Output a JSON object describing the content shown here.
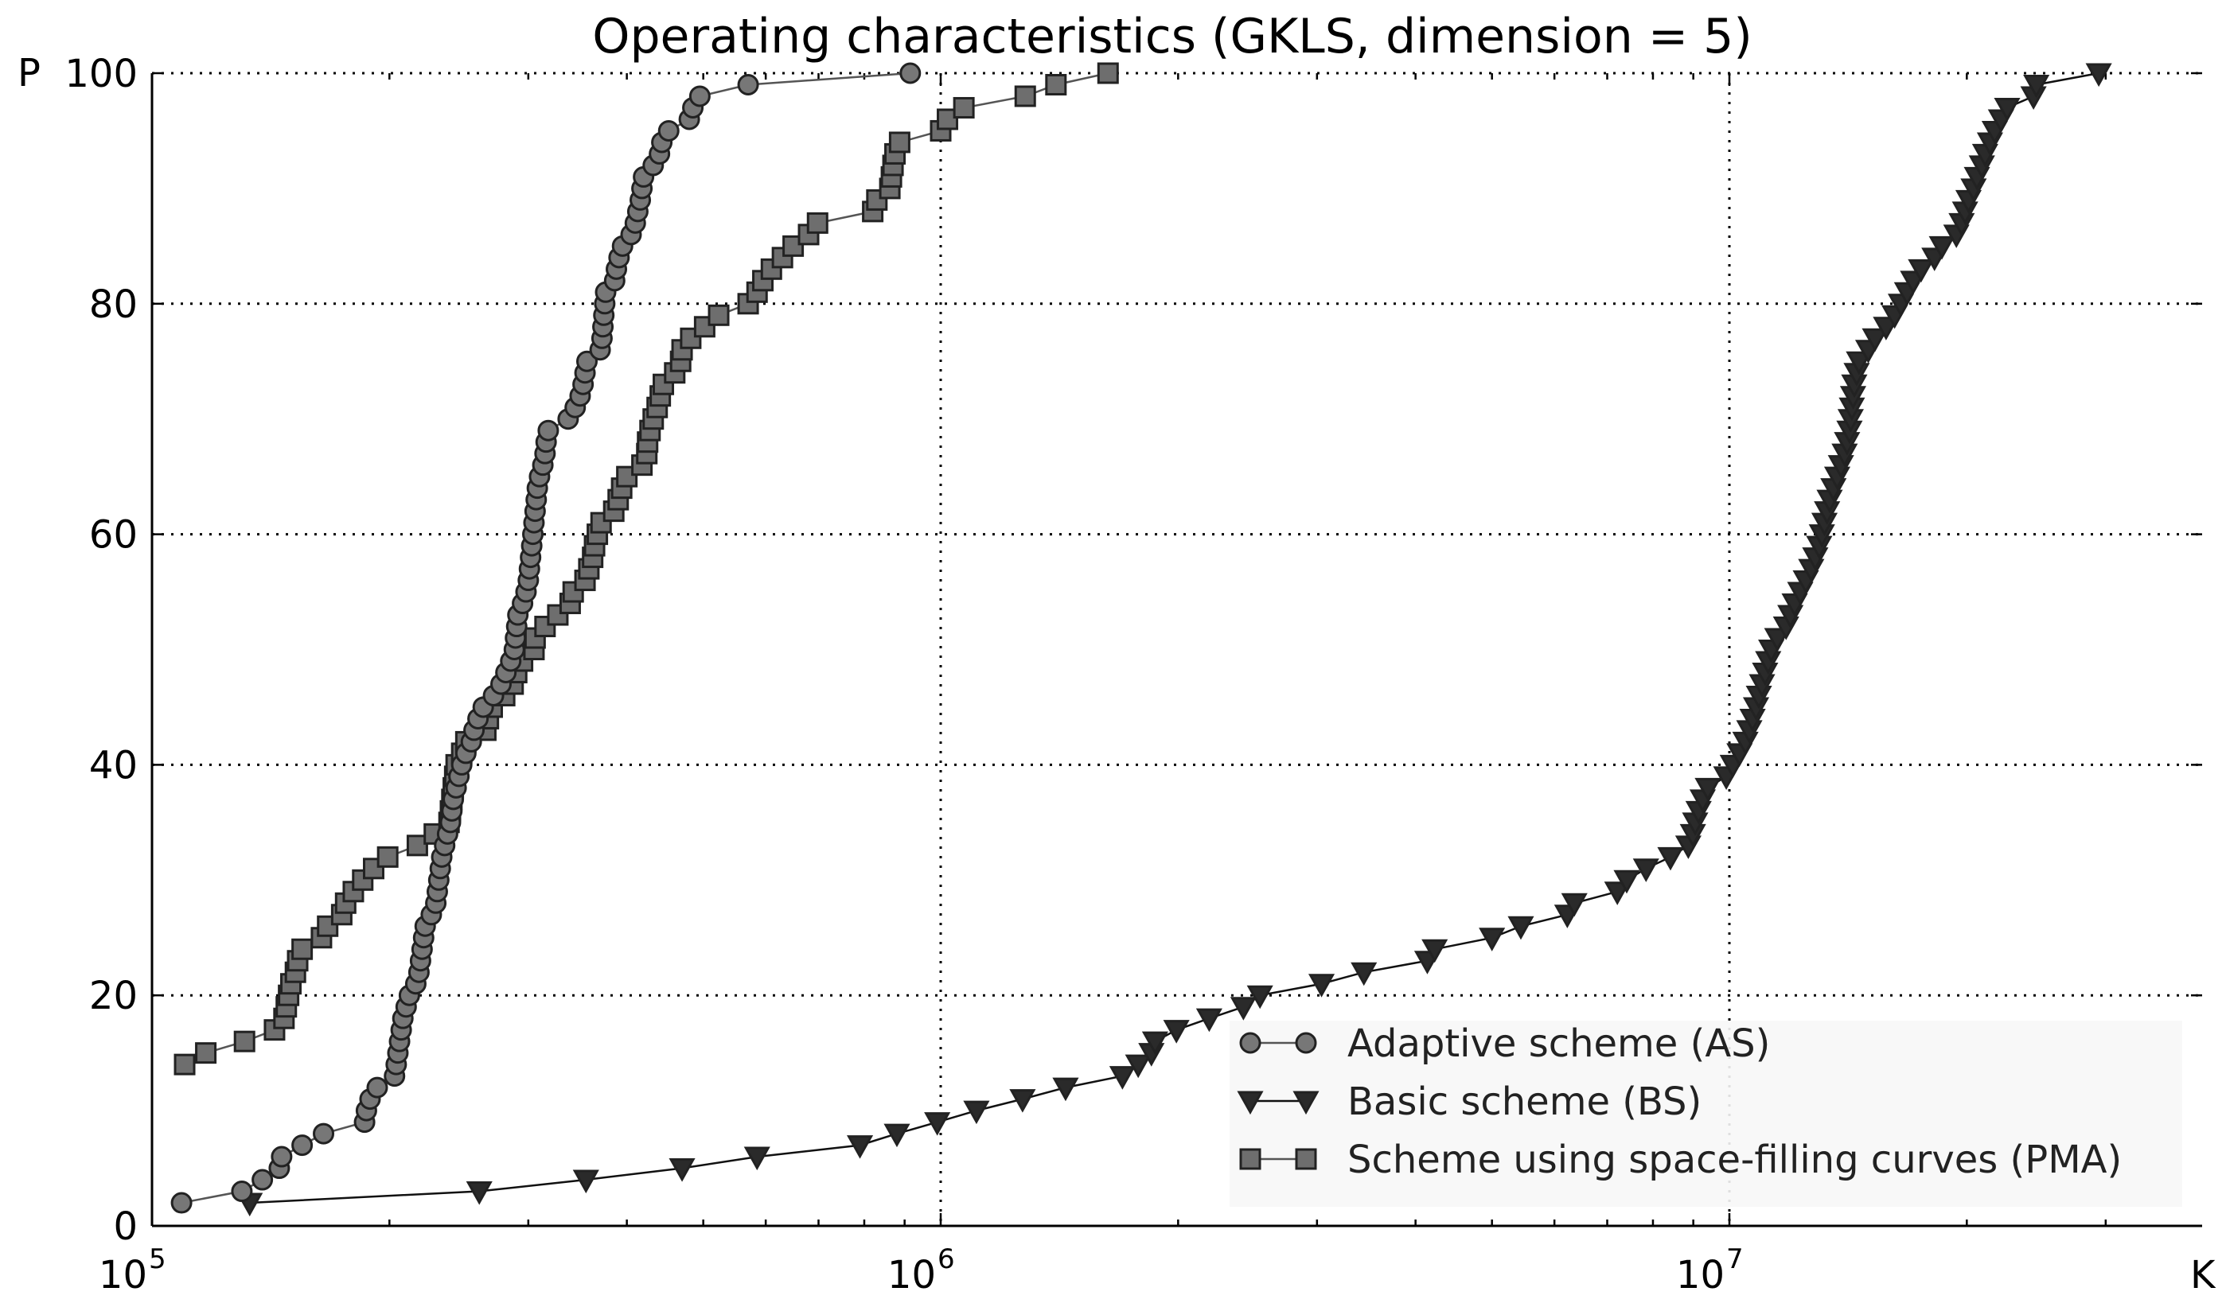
{
  "chart_data": {
    "type": "line",
    "title": "Operating characteristics (GKLS, dimension = 5)",
    "xlabel": "K",
    "ylabel": "P",
    "xscale": "log",
    "xlim": [
      100000,
      30000000
    ],
    "ylim": [
      0,
      100
    ],
    "x_ticks": [
      {
        "value": 100000,
        "base": "10",
        "exp": "5"
      },
      {
        "value": 1000000,
        "base": "10",
        "exp": "6"
      },
      {
        "value": 10000000,
        "base": "10",
        "exp": "7"
      }
    ],
    "y_ticks": [
      {
        "value": 0,
        "label": "0"
      },
      {
        "value": 20,
        "label": "20"
      },
      {
        "value": 40,
        "label": "40"
      },
      {
        "value": 60,
        "label": "60"
      },
      {
        "value": 80,
        "label": "80"
      },
      {
        "value": 100,
        "label": "100"
      }
    ],
    "grid": true,
    "legend_position": "lower-right",
    "series": [
      {
        "name": "Adaptive scheme (AS)",
        "marker": "circle",
        "color": "#777777",
        "line_color": "#555555",
        "points": [
          [
            109000,
            2
          ],
          [
            130000,
            3
          ],
          [
            138000,
            4
          ],
          [
            145000,
            5
          ],
          [
            146000,
            6
          ],
          [
            155000,
            7
          ],
          [
            165000,
            8
          ],
          [
            186000,
            9
          ],
          [
            187000,
            10
          ],
          [
            189000,
            11
          ],
          [
            193000,
            12
          ],
          [
            203000,
            13
          ],
          [
            204000,
            14
          ],
          [
            205000,
            15
          ],
          [
            206000,
            16
          ],
          [
            207000,
            17
          ],
          [
            208000,
            18
          ],
          [
            210000,
            19
          ],
          [
            212000,
            20
          ],
          [
            216000,
            21
          ],
          [
            218000,
            22
          ],
          [
            219000,
            23
          ],
          [
            220000,
            24
          ],
          [
            221000,
            25
          ],
          [
            222000,
            26
          ],
          [
            226000,
            27
          ],
          [
            229000,
            28
          ],
          [
            230000,
            29
          ],
          [
            231000,
            30
          ],
          [
            232000,
            31
          ],
          [
            233000,
            32
          ],
          [
            235000,
            33
          ],
          [
            237000,
            34
          ],
          [
            239000,
            35
          ],
          [
            240000,
            36
          ],
          [
            241000,
            37
          ],
          [
            243000,
            38
          ],
          [
            245000,
            39
          ],
          [
            247000,
            40
          ],
          [
            250000,
            41
          ],
          [
            254000,
            42
          ],
          [
            256000,
            43
          ],
          [
            259000,
            44
          ],
          [
            263000,
            45
          ],
          [
            271000,
            46
          ],
          [
            277000,
            47
          ],
          [
            281000,
            48
          ],
          [
            285000,
            49
          ],
          [
            288000,
            50
          ],
          [
            289000,
            51
          ],
          [
            290000,
            52
          ],
          [
            291000,
            53
          ],
          [
            295000,
            54
          ],
          [
            298000,
            55
          ],
          [
            300000,
            56
          ],
          [
            301000,
            57
          ],
          [
            302000,
            58
          ],
          [
            303000,
            59
          ],
          [
            304000,
            60
          ],
          [
            305000,
            61
          ],
          [
            306000,
            62
          ],
          [
            307000,
            63
          ],
          [
            308000,
            64
          ],
          [
            310000,
            65
          ],
          [
            313000,
            66
          ],
          [
            315000,
            67
          ],
          [
            316000,
            68
          ],
          [
            318000,
            69
          ],
          [
            337000,
            70
          ],
          [
            344000,
            71
          ],
          [
            349000,
            72
          ],
          [
            352000,
            73
          ],
          [
            354000,
            74
          ],
          [
            356000,
            75
          ],
          [
            370000,
            76
          ],
          [
            372000,
            77
          ],
          [
            373000,
            78
          ],
          [
            374000,
            79
          ],
          [
            375000,
            80
          ],
          [
            376000,
            81
          ],
          [
            386000,
            82
          ],
          [
            388000,
            83
          ],
          [
            391000,
            84
          ],
          [
            395000,
            85
          ],
          [
            405000,
            86
          ],
          [
            410000,
            87
          ],
          [
            413000,
            88
          ],
          [
            416000,
            89
          ],
          [
            418000,
            90
          ],
          [
            420000,
            91
          ],
          [
            432000,
            92
          ],
          [
            440000,
            93
          ],
          [
            443000,
            94
          ],
          [
            452000,
            95
          ],
          [
            480000,
            96
          ],
          [
            485000,
            97
          ],
          [
            495000,
            98
          ],
          [
            570000,
            99
          ],
          [
            915000,
            100
          ]
        ]
      },
      {
        "name": "Basic scheme (BS)",
        "marker": "triangle-down",
        "color": "#2a2a2a",
        "line_color": "#111111",
        "points": [
          [
            133000,
            2
          ],
          [
            260000,
            3
          ],
          [
            355000,
            4
          ],
          [
            470000,
            5
          ],
          [
            585000,
            6
          ],
          [
            790000,
            7
          ],
          [
            880000,
            8
          ],
          [
            990000,
            9
          ],
          [
            1110000,
            10
          ],
          [
            1270000,
            11
          ],
          [
            1440000,
            12
          ],
          [
            1700000,
            13
          ],
          [
            1780000,
            14
          ],
          [
            1850000,
            15
          ],
          [
            1870000,
            16
          ],
          [
            1990000,
            17
          ],
          [
            2190000,
            18
          ],
          [
            2420000,
            19
          ],
          [
            2540000,
            20
          ],
          [
            3040000,
            21
          ],
          [
            3440000,
            22
          ],
          [
            4140000,
            23
          ],
          [
            4230000,
            24
          ],
          [
            5000000,
            25
          ],
          [
            5440000,
            26
          ],
          [
            6230000,
            27
          ],
          [
            6360000,
            28
          ],
          [
            7210000,
            29
          ],
          [
            7410000,
            30
          ],
          [
            7840000,
            31
          ],
          [
            8420000,
            32
          ],
          [
            8870000,
            33
          ],
          [
            8990000,
            34
          ],
          [
            9050000,
            35
          ],
          [
            9140000,
            36
          ],
          [
            9250000,
            37
          ],
          [
            9390000,
            38
          ],
          [
            9910000,
            39
          ],
          [
            10100000,
            40
          ],
          [
            10300000,
            41
          ],
          [
            10480000,
            42
          ],
          [
            10600000,
            43
          ],
          [
            10700000,
            44
          ],
          [
            10810000,
            45
          ],
          [
            10900000,
            46
          ],
          [
            11000000,
            47
          ],
          [
            11100000,
            48
          ],
          [
            11200000,
            49
          ],
          [
            11300000,
            50
          ],
          [
            11500000,
            51
          ],
          [
            11800000,
            52
          ],
          [
            11950000,
            53
          ],
          [
            12100000,
            54
          ],
          [
            12300000,
            55
          ],
          [
            12500000,
            56
          ],
          [
            12700000,
            57
          ],
          [
            12850000,
            58
          ],
          [
            13000000,
            59
          ],
          [
            13100000,
            60
          ],
          [
            13200000,
            61
          ],
          [
            13300000,
            62
          ],
          [
            13400000,
            63
          ],
          [
            13550000,
            64
          ],
          [
            13700000,
            65
          ],
          [
            13850000,
            66
          ],
          [
            14000000,
            67
          ],
          [
            14100000,
            68
          ],
          [
            14200000,
            69
          ],
          [
            14250000,
            70
          ],
          [
            14300000,
            71
          ],
          [
            14350000,
            72
          ],
          [
            14400000,
            73
          ],
          [
            14500000,
            74
          ],
          [
            14600000,
            75
          ],
          [
            15000000,
            76
          ],
          [
            15300000,
            77
          ],
          [
            15800000,
            78
          ],
          [
            16200000,
            79
          ],
          [
            16500000,
            80
          ],
          [
            16800000,
            81
          ],
          [
            17100000,
            82
          ],
          [
            17500000,
            83
          ],
          [
            18200000,
            84
          ],
          [
            18600000,
            85
          ],
          [
            19400000,
            86
          ],
          [
            19700000,
            87
          ],
          [
            19900000,
            88
          ],
          [
            20100000,
            89
          ],
          [
            20400000,
            90
          ],
          [
            20600000,
            91
          ],
          [
            20900000,
            92
          ],
          [
            21100000,
            93
          ],
          [
            21400000,
            94
          ],
          [
            21700000,
            95
          ],
          [
            22100000,
            96
          ],
          [
            22500000,
            97
          ],
          [
            24300000,
            98
          ],
          [
            24500000,
            99
          ],
          [
            29400000,
            100
          ]
        ]
      },
      {
        "name": "Scheme using space-filling curves (PMA)",
        "marker": "square",
        "color": "#6e6e6e",
        "line_color": "#555555",
        "points": [
          [
            110000,
            14
          ],
          [
            117000,
            15
          ],
          [
            131000,
            16
          ],
          [
            143000,
            17
          ],
          [
            147000,
            18
          ],
          [
            148000,
            19
          ],
          [
            149000,
            20
          ],
          [
            150000,
            21
          ],
          [
            152000,
            22
          ],
          [
            153000,
            23
          ],
          [
            155000,
            24
          ],
          [
            164000,
            25
          ],
          [
            167000,
            26
          ],
          [
            174000,
            27
          ],
          [
            176000,
            28
          ],
          [
            180000,
            29
          ],
          [
            185000,
            30
          ],
          [
            191000,
            31
          ],
          [
            199000,
            32
          ],
          [
            217000,
            33
          ],
          [
            228000,
            34
          ],
          [
            238000,
            35
          ],
          [
            239000,
            36
          ],
          [
            240000,
            37
          ],
          [
            241000,
            38
          ],
          [
            242000,
            39
          ],
          [
            243000,
            40
          ],
          [
            247000,
            41
          ],
          [
            250000,
            42
          ],
          [
            265000,
            43
          ],
          [
            267000,
            44
          ],
          [
            270000,
            45
          ],
          [
            280000,
            46
          ],
          [
            287000,
            47
          ],
          [
            290000,
            48
          ],
          [
            295000,
            49
          ],
          [
            305000,
            50
          ],
          [
            306000,
            51
          ],
          [
            315000,
            52
          ],
          [
            327000,
            53
          ],
          [
            339000,
            54
          ],
          [
            342000,
            55
          ],
          [
            354000,
            56
          ],
          [
            358000,
            57
          ],
          [
            362000,
            58
          ],
          [
            364000,
            59
          ],
          [
            367000,
            60
          ],
          [
            371000,
            61
          ],
          [
            385000,
            62
          ],
          [
            390000,
            63
          ],
          [
            394000,
            64
          ],
          [
            400000,
            65
          ],
          [
            418000,
            66
          ],
          [
            424000,
            67
          ],
          [
            425000,
            68
          ],
          [
            428000,
            69
          ],
          [
            432000,
            70
          ],
          [
            437000,
            71
          ],
          [
            441000,
            72
          ],
          [
            445000,
            73
          ],
          [
            460000,
            74
          ],
          [
            468000,
            75
          ],
          [
            470000,
            76
          ],
          [
            482000,
            77
          ],
          [
            502000,
            78
          ],
          [
            523000,
            79
          ],
          [
            570000,
            80
          ],
          [
            585000,
            81
          ],
          [
            595000,
            82
          ],
          [
            610000,
            83
          ],
          [
            630000,
            84
          ],
          [
            650000,
            85
          ],
          [
            680000,
            86
          ],
          [
            698000,
            87
          ],
          [
            820000,
            88
          ],
          [
            830000,
            89
          ],
          [
            862000,
            90
          ],
          [
            866000,
            91
          ],
          [
            870000,
            92
          ],
          [
            875000,
            93
          ],
          [
            887000,
            94
          ],
          [
            1000000,
            95
          ],
          [
            1020000,
            96
          ],
          [
            1070000,
            97
          ],
          [
            1280000,
            98
          ],
          [
            1400000,
            99
          ],
          [
            1630000,
            100
          ]
        ]
      }
    ]
  }
}
